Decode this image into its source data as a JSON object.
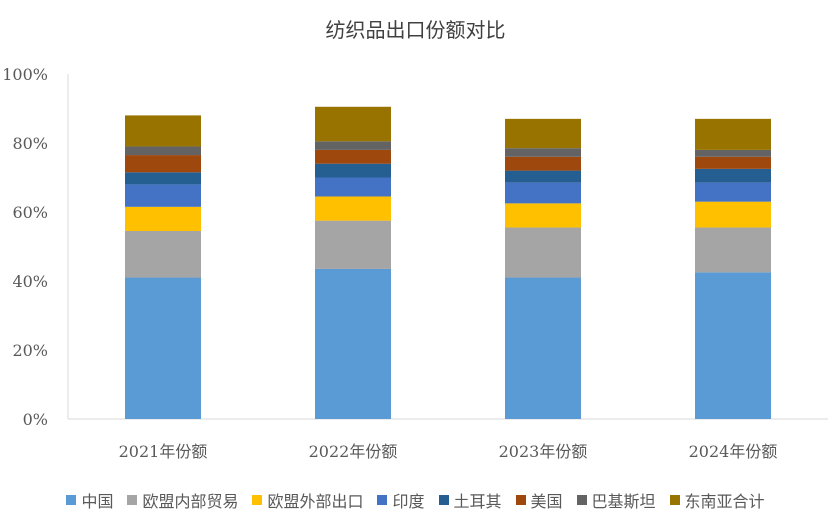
{
  "chart_data": {
    "type": "bar",
    "stacked": true,
    "title": "纺织品出口份额对比",
    "categories": [
      "2021年份额",
      "2022年份额",
      "2023年份额",
      "2024年份额"
    ],
    "y_ticks": [
      "0%",
      "20%",
      "40%",
      "60%",
      "80%",
      "100%"
    ],
    "ylim": [
      0,
      100
    ],
    "grid": false,
    "legend_position": "bottom",
    "series": [
      {
        "name": "中国",
        "color": "#5B9BD5",
        "values": [
          41,
          43.5,
          41,
          42.5
        ]
      },
      {
        "name": "欧盟内部贸易",
        "color": "#A5A5A5",
        "values": [
          13.5,
          14,
          14.5,
          13
        ]
      },
      {
        "name": "欧盟外部出口",
        "color": "#FFC000",
        "values": [
          7,
          7,
          7,
          7.5
        ]
      },
      {
        "name": "印度",
        "color": "#4472C4",
        "values": [
          6.5,
          5.5,
          6,
          5.5
        ]
      },
      {
        "name": "土耳其",
        "color": "#255E91",
        "values": [
          3.5,
          4,
          3.5,
          4
        ]
      },
      {
        "name": "美国",
        "color": "#9E480E",
        "values": [
          5,
          4,
          4,
          3.5
        ]
      },
      {
        "name": "巴基斯坦",
        "color": "#636363",
        "values": [
          2.5,
          2.5,
          2.5,
          2
        ]
      },
      {
        "name": "东南亚合计",
        "color": "#997300",
        "values": [
          9,
          10,
          8.5,
          9
        ]
      }
    ]
  }
}
